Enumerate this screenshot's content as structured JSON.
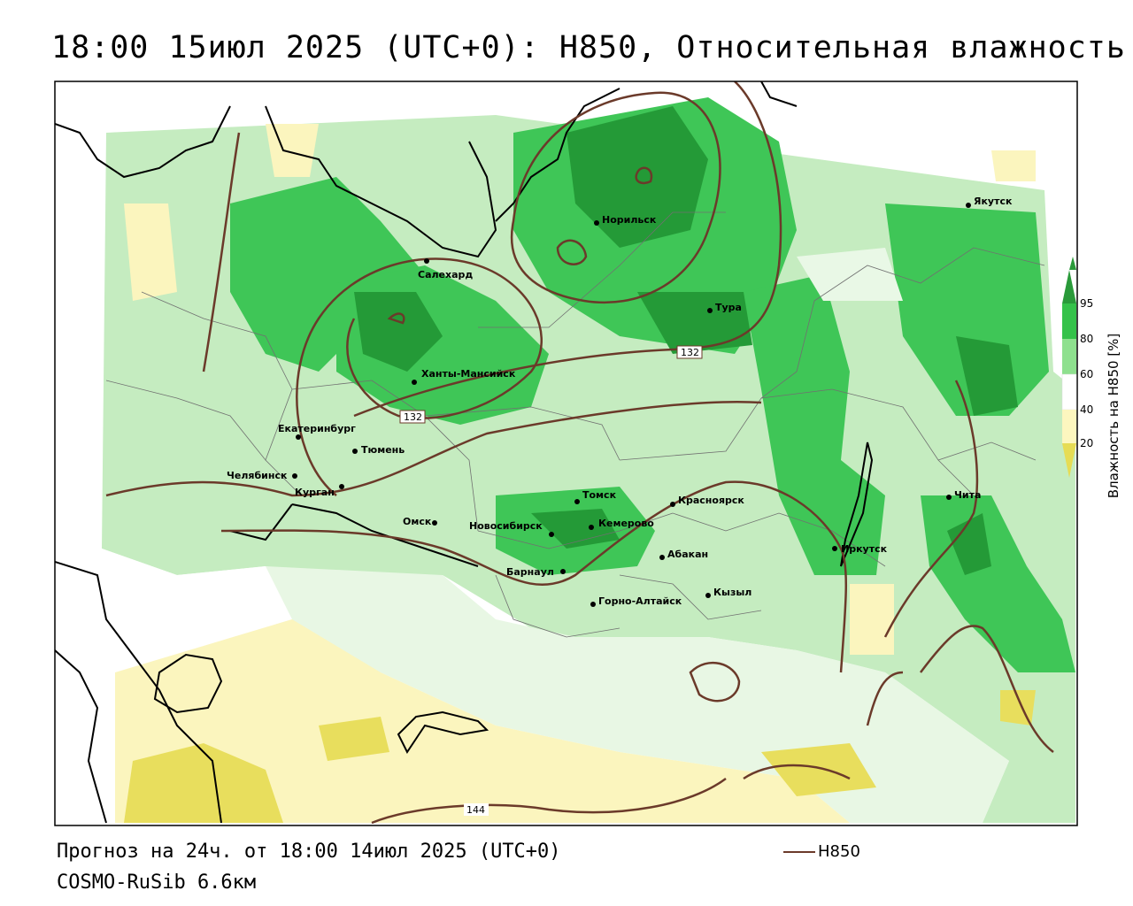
{
  "title": "18:00 15июл 2025 (UTC+0): H850, Относительная влажность",
  "forecast": "Прогноз на 24ч. от 18:00 14июл 2025 (UTC+0)",
  "model": "COSMO-RuSib 6.6км",
  "legend": {
    "line_label": "H850",
    "line_color": "#6b3a2a"
  },
  "colorbar": {
    "title": "Влажность на H850 [%]",
    "ticks": [
      "95",
      "80",
      "60",
      "40",
      "20"
    ],
    "colors": [
      "#2a9a3a",
      "#35c24a",
      "#8ee08e",
      "#d6f2d2",
      "#ffffff",
      "#fcf6bf",
      "#e6dc55"
    ]
  },
  "contour_labels": [
    "132",
    "132",
    "144"
  ],
  "cities": [
    {
      "name": "Якутск"
    },
    {
      "name": "Норильск"
    },
    {
      "name": "Салехард"
    },
    {
      "name": "Тура"
    },
    {
      "name": "Ханты-Мансийск"
    },
    {
      "name": "Екатеринбург"
    },
    {
      "name": "Тюмень"
    },
    {
      "name": "Челябинск"
    },
    {
      "name": "Курган"
    },
    {
      "name": "Омск"
    },
    {
      "name": "Томск"
    },
    {
      "name": "Новосибирск"
    },
    {
      "name": "Кемерово"
    },
    {
      "name": "Красноярск"
    },
    {
      "name": "Барнаул"
    },
    {
      "name": "Абакан"
    },
    {
      "name": "Иркутск"
    },
    {
      "name": "Чита"
    },
    {
      "name": "Кызыл"
    },
    {
      "name": "Горно-Алтайск"
    }
  ]
}
